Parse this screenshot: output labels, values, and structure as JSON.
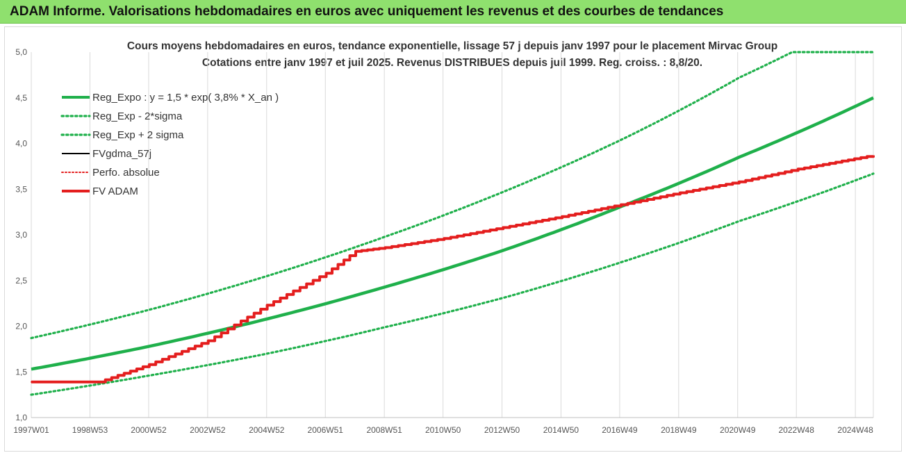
{
  "window": {
    "title": "ADAM Informe. Valorisations hebdomadaires en euros avec uniquement les revenus et des courbes de tendances"
  },
  "chart_data": {
    "type": "line",
    "title_lines": [
      "Cours moyens hebdomadaires en euros, tendance exponentielle, lissage 57 j depuis janv 1997 pour le placement Mirvac Group",
      "Cotations entre janv 1997 et juil 2025. Revenus DISTRIBUES depuis juil 1999. Reg. croiss. : 8,8/20."
    ],
    "xlabel": "",
    "ylabel": "",
    "x_range": [
      1997.0,
      2025.55
    ],
    "ylim": [
      1.0,
      5.0
    ],
    "y_ticks": [
      "1,0",
      "1,5",
      "2,0",
      "2,5",
      "3,0",
      "3,5",
      "4,0",
      "4,5",
      "5,0"
    ],
    "x_ticks": [
      {
        "label": "1997W01",
        "x": 1997.0
      },
      {
        "label": "1998W53",
        "x": 1998.99
      },
      {
        "label": "2000W52",
        "x": 2000.98
      },
      {
        "label": "2002W52",
        "x": 2002.98
      },
      {
        "label": "2004W52",
        "x": 2004.98
      },
      {
        "label": "2006W51",
        "x": 2006.97
      },
      {
        "label": "2008W51",
        "x": 2008.97
      },
      {
        "label": "2010W50",
        "x": 2010.96
      },
      {
        "label": "2012W50",
        "x": 2012.96
      },
      {
        "label": "2014W50",
        "x": 2014.96
      },
      {
        "label": "2016W49",
        "x": 2016.95
      },
      {
        "label": "2018W49",
        "x": 2018.95
      },
      {
        "label": "2020W49",
        "x": 2020.95
      },
      {
        "label": "2022W48",
        "x": 2022.94
      },
      {
        "label": "2024W48",
        "x": 2024.94
      }
    ],
    "grid": "vertical",
    "legend_position": "top-left",
    "series": [
      {
        "name": "Reg_Expo : y = 1,5 * exp( 3,8% *  X_an )",
        "color": "#1fb04b",
        "style": "solid",
        "x": [
          1997.0,
          2001.0,
          2005.0,
          2009.0,
          2013.0,
          2017.0,
          2021.0,
          2025.55
        ],
        "y": [
          1.53,
          1.78,
          2.08,
          2.43,
          2.83,
          3.31,
          3.85,
          4.5
        ]
      },
      {
        "name": "Reg_Exp - 2*sigma",
        "color": "#1fb04b",
        "style": "dotted",
        "x": [
          1997.0,
          2001.0,
          2005.0,
          2009.0,
          2013.0,
          2017.0,
          2021.0,
          2025.55
        ],
        "y": [
          1.25,
          1.46,
          1.7,
          1.99,
          2.31,
          2.7,
          3.15,
          3.67
        ]
      },
      {
        "name": "Reg_Exp + 2 sigma",
        "color": "#1fb04b",
        "style": "dotted",
        "x": [
          1997.0,
          2001.0,
          2005.0,
          2009.0,
          2013.0,
          2017.0,
          2021.0,
          2022.8,
          2025.55
        ],
        "y": [
          1.87,
          2.18,
          2.55,
          2.98,
          3.47,
          4.04,
          4.72,
          5.0,
          5.0
        ]
      },
      {
        "name": "FVgdma_57j",
        "color": "#000000",
        "style": "solid",
        "x": [
          1997.0,
          1999.3,
          2001.0,
          2003.0,
          2005.0,
          2007.0,
          2008.0,
          2009.0,
          2011.0,
          2013.0,
          2015.0,
          2017.0,
          2019.0,
          2021.0,
          2023.0,
          2025.55
        ],
        "y": [
          1.39,
          1.39,
          1.58,
          1.84,
          2.23,
          2.58,
          2.82,
          2.86,
          2.96,
          3.08,
          3.2,
          3.33,
          3.46,
          3.58,
          3.72,
          3.87
        ]
      },
      {
        "name": "Perfo. absolue",
        "color": "#e41e1e",
        "style": "dotted",
        "x": [
          1997.0,
          1999.3,
          2001.0,
          2003.0,
          2005.0,
          2007.0,
          2008.0,
          2009.0,
          2011.0,
          2013.0,
          2015.0,
          2017.0,
          2019.0,
          2021.0,
          2023.0,
          2025.55
        ],
        "y": [
          1.39,
          1.39,
          1.58,
          1.84,
          2.23,
          2.58,
          2.82,
          2.86,
          2.96,
          3.08,
          3.2,
          3.33,
          3.46,
          3.58,
          3.72,
          3.87
        ]
      },
      {
        "name": "FV ADAM",
        "color": "#e41e1e",
        "style": "solid",
        "x": [
          1997.0,
          1999.3,
          2001.0,
          2003.0,
          2005.0,
          2007.0,
          2008.0,
          2009.0,
          2011.0,
          2013.0,
          2015.0,
          2017.0,
          2019.0,
          2021.0,
          2023.0,
          2025.55
        ],
        "y": [
          1.39,
          1.39,
          1.58,
          1.84,
          2.23,
          2.58,
          2.82,
          2.86,
          2.96,
          3.08,
          3.2,
          3.33,
          3.46,
          3.58,
          3.72,
          3.87
        ]
      }
    ]
  }
}
